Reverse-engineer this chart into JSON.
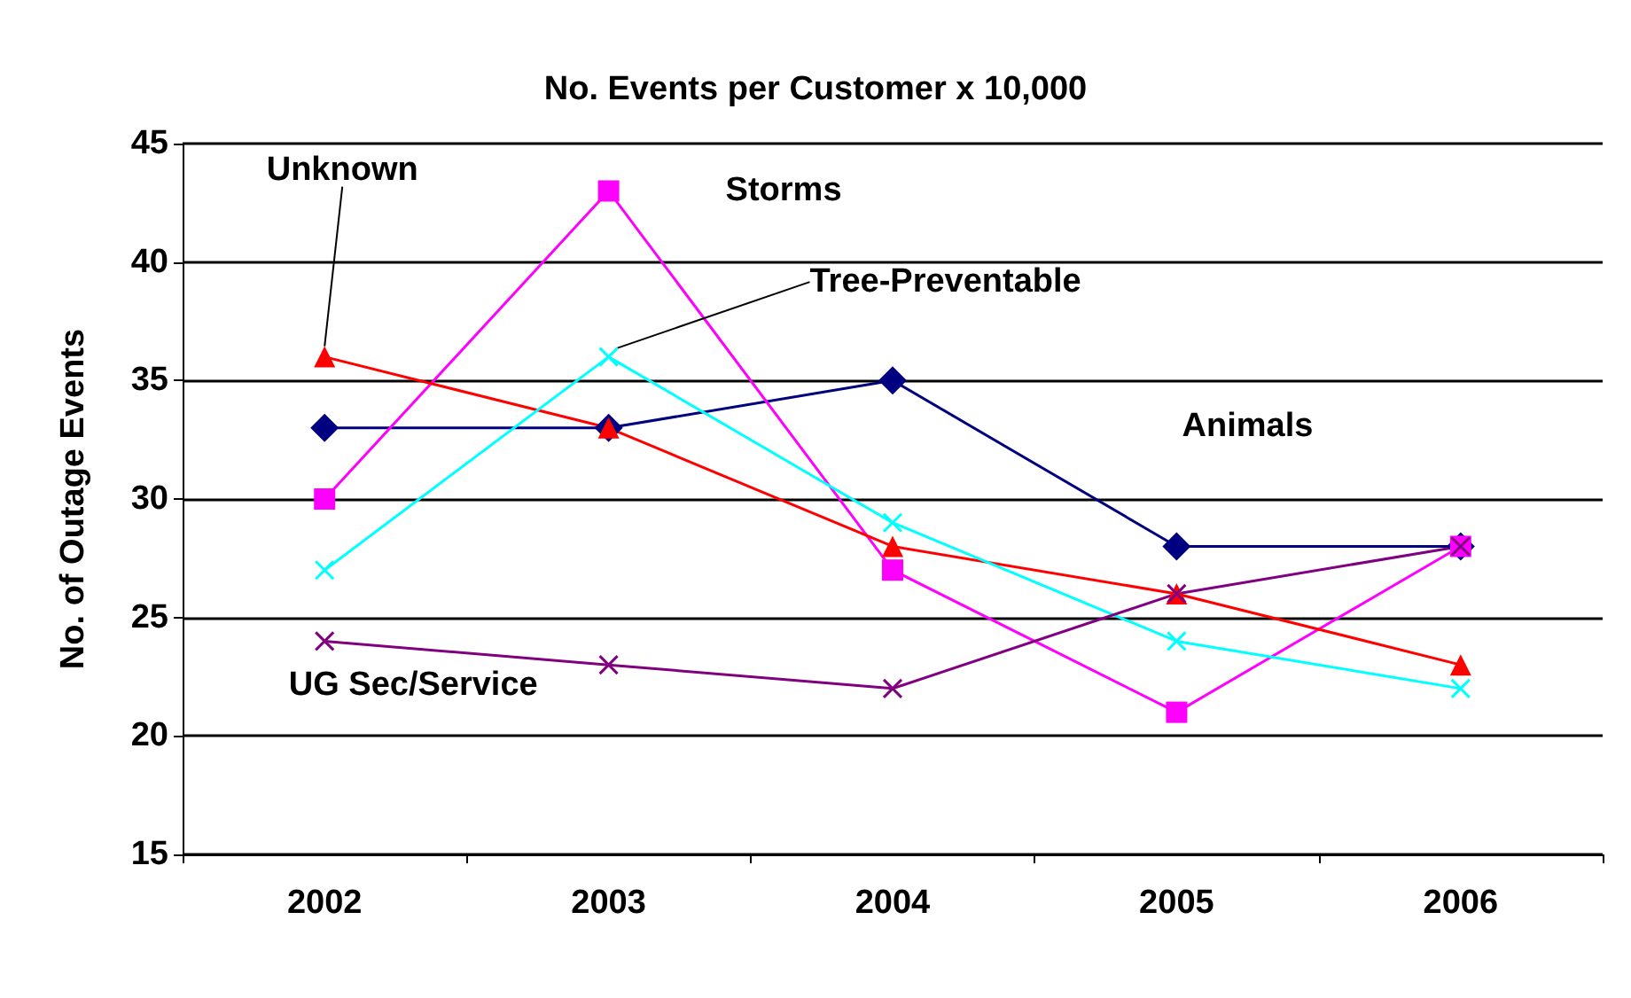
{
  "chart_data": {
    "type": "line",
    "title": "No. Events per Customer x 10,000",
    "ylabel": "No. of Outage Events",
    "categories": [
      "2002",
      "2003",
      "2004",
      "2005",
      "2006"
    ],
    "series": [
      {
        "name": "Animals",
        "color": "#000080",
        "marker": "diamond",
        "values": [
          33,
          33,
          35,
          28,
          28
        ]
      },
      {
        "name": "Storms",
        "color": "#ff00ff",
        "marker": "square",
        "values": [
          30,
          43,
          27,
          21,
          28
        ]
      },
      {
        "name": "Unknown",
        "color": "#ff0000",
        "marker": "triangle",
        "values": [
          36,
          33,
          28,
          26,
          23
        ]
      },
      {
        "name": "Tree-Preventable",
        "color": "#00ffff",
        "marker": "cross",
        "values": [
          27,
          36,
          29,
          24,
          22
        ]
      },
      {
        "name": "UG Sec/Service",
        "color": "#800080",
        "marker": "cross",
        "values": [
          24,
          23,
          22,
          26,
          28
        ]
      }
    ],
    "ylim": [
      15,
      45
    ],
    "yticks": [
      15,
      20,
      25,
      30,
      35,
      40,
      45
    ],
    "grid": "y",
    "legend": false,
    "line_style": "solid"
  }
}
